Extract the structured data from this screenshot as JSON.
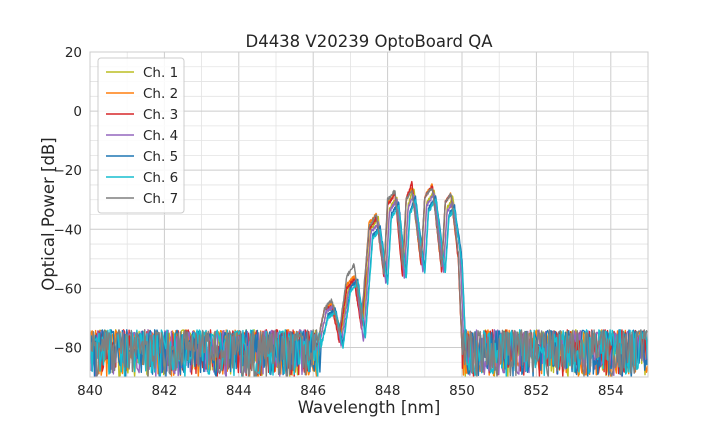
{
  "chart_data": {
    "type": "line",
    "title": "D4438 V20239 OptoBoard QA",
    "xlabel": "Wavelength [nm]",
    "ylabel": "Optical Power [dB]",
    "xlim": [
      840,
      855
    ],
    "ylim": [
      -90,
      20
    ],
    "xticks": [
      840,
      842,
      844,
      846,
      848,
      850,
      852,
      854
    ],
    "yticks": [
      -80,
      -60,
      -40,
      -20,
      0,
      20
    ],
    "grid": true,
    "legend_position": "top-left",
    "series": [
      {
        "name": "Ch. 1",
        "color": "#bcbd22",
        "points": [
          [
            840,
            -80
          ],
          [
            846.15,
            -80
          ],
          [
            846.35,
            -68
          ],
          [
            846.55,
            -66
          ],
          [
            846.75,
            -75
          ],
          [
            846.95,
            -60
          ],
          [
            847.15,
            -57
          ],
          [
            847.35,
            -70
          ],
          [
            847.55,
            -40
          ],
          [
            847.75,
            -36
          ],
          [
            847.95,
            -55
          ],
          [
            848.05,
            -33
          ],
          [
            848.25,
            -29
          ],
          [
            848.45,
            -53
          ],
          [
            848.55,
            -32
          ],
          [
            848.7,
            -26
          ],
          [
            848.95,
            -52
          ],
          [
            849.05,
            -31
          ],
          [
            849.25,
            -27
          ],
          [
            849.5,
            -53
          ],
          [
            849.6,
            -33
          ],
          [
            849.75,
            -29
          ],
          [
            849.95,
            -48
          ],
          [
            850.05,
            -80
          ],
          [
            855,
            -80
          ]
        ]
      },
      {
        "name": "Ch. 2",
        "color": "#ff7f0e",
        "points": [
          [
            840,
            -80
          ],
          [
            846.1,
            -80
          ],
          [
            846.3,
            -67
          ],
          [
            846.5,
            -65
          ],
          [
            846.7,
            -76
          ],
          [
            846.9,
            -59
          ],
          [
            847.1,
            -56
          ],
          [
            847.3,
            -72
          ],
          [
            847.5,
            -38
          ],
          [
            847.7,
            -35
          ],
          [
            847.9,
            -55
          ],
          [
            848.0,
            -31
          ],
          [
            848.2,
            -28
          ],
          [
            848.4,
            -55
          ],
          [
            848.5,
            -30
          ],
          [
            848.65,
            -26
          ],
          [
            848.9,
            -52
          ],
          [
            849.0,
            -29
          ],
          [
            849.2,
            -25
          ],
          [
            849.45,
            -54
          ],
          [
            849.55,
            -31
          ],
          [
            849.7,
            -28
          ],
          [
            849.9,
            -50
          ],
          [
            850.0,
            -80
          ],
          [
            855,
            -80
          ]
        ]
      },
      {
        "name": "Ch. 3",
        "color": "#d62728",
        "points": [
          [
            840,
            -80
          ],
          [
            846.1,
            -80
          ],
          [
            846.3,
            -67
          ],
          [
            846.5,
            -66
          ],
          [
            846.7,
            -78
          ],
          [
            846.9,
            -60
          ],
          [
            847.1,
            -57
          ],
          [
            847.3,
            -74
          ],
          [
            847.5,
            -40
          ],
          [
            847.7,
            -36
          ],
          [
            847.9,
            -56
          ],
          [
            848.0,
            -32
          ],
          [
            848.2,
            -28
          ],
          [
            848.4,
            -56
          ],
          [
            848.5,
            -30
          ],
          [
            848.65,
            -24
          ],
          [
            848.9,
            -52
          ],
          [
            849.0,
            -29
          ],
          [
            849.2,
            -25
          ],
          [
            849.45,
            -54
          ],
          [
            849.55,
            -31
          ],
          [
            849.7,
            -28
          ],
          [
            849.9,
            -50
          ],
          [
            850.0,
            -80
          ],
          [
            855,
            -80
          ]
        ]
      },
      {
        "name": "Ch. 4",
        "color": "#9467bd",
        "points": [
          [
            840,
            -80
          ],
          [
            846.15,
            -80
          ],
          [
            846.35,
            -68
          ],
          [
            846.55,
            -66
          ],
          [
            846.75,
            -79
          ],
          [
            846.95,
            -61
          ],
          [
            847.15,
            -57
          ],
          [
            847.35,
            -78
          ],
          [
            847.55,
            -41
          ],
          [
            847.75,
            -38
          ],
          [
            847.95,
            -58
          ],
          [
            848.05,
            -34
          ],
          [
            848.25,
            -30
          ],
          [
            848.45,
            -57
          ],
          [
            848.55,
            -33
          ],
          [
            848.7,
            -28
          ],
          [
            848.95,
            -54
          ],
          [
            849.05,
            -32
          ],
          [
            849.25,
            -28
          ],
          [
            849.5,
            -54
          ],
          [
            849.6,
            -34
          ],
          [
            849.75,
            -31
          ],
          [
            849.95,
            -48
          ],
          [
            850.05,
            -80
          ],
          [
            855,
            -80
          ]
        ]
      },
      {
        "name": "Ch. 5",
        "color": "#1f77b4",
        "points": [
          [
            840,
            -80
          ],
          [
            846.2,
            -80
          ],
          [
            846.4,
            -69
          ],
          [
            846.6,
            -67
          ],
          [
            846.8,
            -79
          ],
          [
            847.0,
            -60
          ],
          [
            847.2,
            -57
          ],
          [
            847.4,
            -76
          ],
          [
            847.6,
            -42
          ],
          [
            847.8,
            -39
          ],
          [
            848.0,
            -58
          ],
          [
            848.1,
            -35
          ],
          [
            848.3,
            -31
          ],
          [
            848.5,
            -56
          ],
          [
            848.6,
            -34
          ],
          [
            848.75,
            -29
          ],
          [
            849.0,
            -54
          ],
          [
            849.1,
            -33
          ],
          [
            849.3,
            -29
          ],
          [
            849.55,
            -54
          ],
          [
            849.65,
            -35
          ],
          [
            849.8,
            -32
          ],
          [
            850.0,
            -50
          ],
          [
            850.1,
            -80
          ],
          [
            855,
            -80
          ]
        ]
      },
      {
        "name": "Ch. 6",
        "color": "#17becf",
        "points": [
          [
            840,
            -80
          ],
          [
            846.2,
            -80
          ],
          [
            846.4,
            -70
          ],
          [
            846.6,
            -68
          ],
          [
            846.8,
            -80
          ],
          [
            847.0,
            -61
          ],
          [
            847.2,
            -58
          ],
          [
            847.4,
            -77
          ],
          [
            847.6,
            -43
          ],
          [
            847.8,
            -40
          ],
          [
            848.0,
            -59
          ],
          [
            848.1,
            -36
          ],
          [
            848.3,
            -32
          ],
          [
            848.5,
            -57
          ],
          [
            848.6,
            -35
          ],
          [
            848.75,
            -30
          ],
          [
            849.0,
            -55
          ],
          [
            849.1,
            -34
          ],
          [
            849.3,
            -30
          ],
          [
            849.55,
            -55
          ],
          [
            849.65,
            -36
          ],
          [
            849.8,
            -33
          ],
          [
            850.0,
            -52
          ],
          [
            850.1,
            -80
          ],
          [
            855,
            -80
          ]
        ]
      },
      {
        "name": "Ch. 7",
        "color": "#7f7f7f",
        "points": [
          [
            840,
            -80
          ],
          [
            846.1,
            -80
          ],
          [
            846.3,
            -67
          ],
          [
            846.5,
            -64
          ],
          [
            846.7,
            -75
          ],
          [
            846.9,
            -56
          ],
          [
            847.1,
            -52
          ],
          [
            847.3,
            -70
          ],
          [
            847.5,
            -39
          ],
          [
            847.7,
            -35
          ],
          [
            847.9,
            -55
          ],
          [
            848.0,
            -30
          ],
          [
            848.2,
            -27
          ],
          [
            848.4,
            -52
          ],
          [
            848.5,
            -30
          ],
          [
            848.65,
            -27
          ],
          [
            848.9,
            -50
          ],
          [
            849.0,
            -29
          ],
          [
            849.2,
            -26
          ],
          [
            849.45,
            -52
          ],
          [
            849.55,
            -31
          ],
          [
            849.7,
            -28
          ],
          [
            849.9,
            -48
          ],
          [
            850.0,
            -80
          ],
          [
            855,
            -80
          ]
        ]
      }
    ]
  }
}
